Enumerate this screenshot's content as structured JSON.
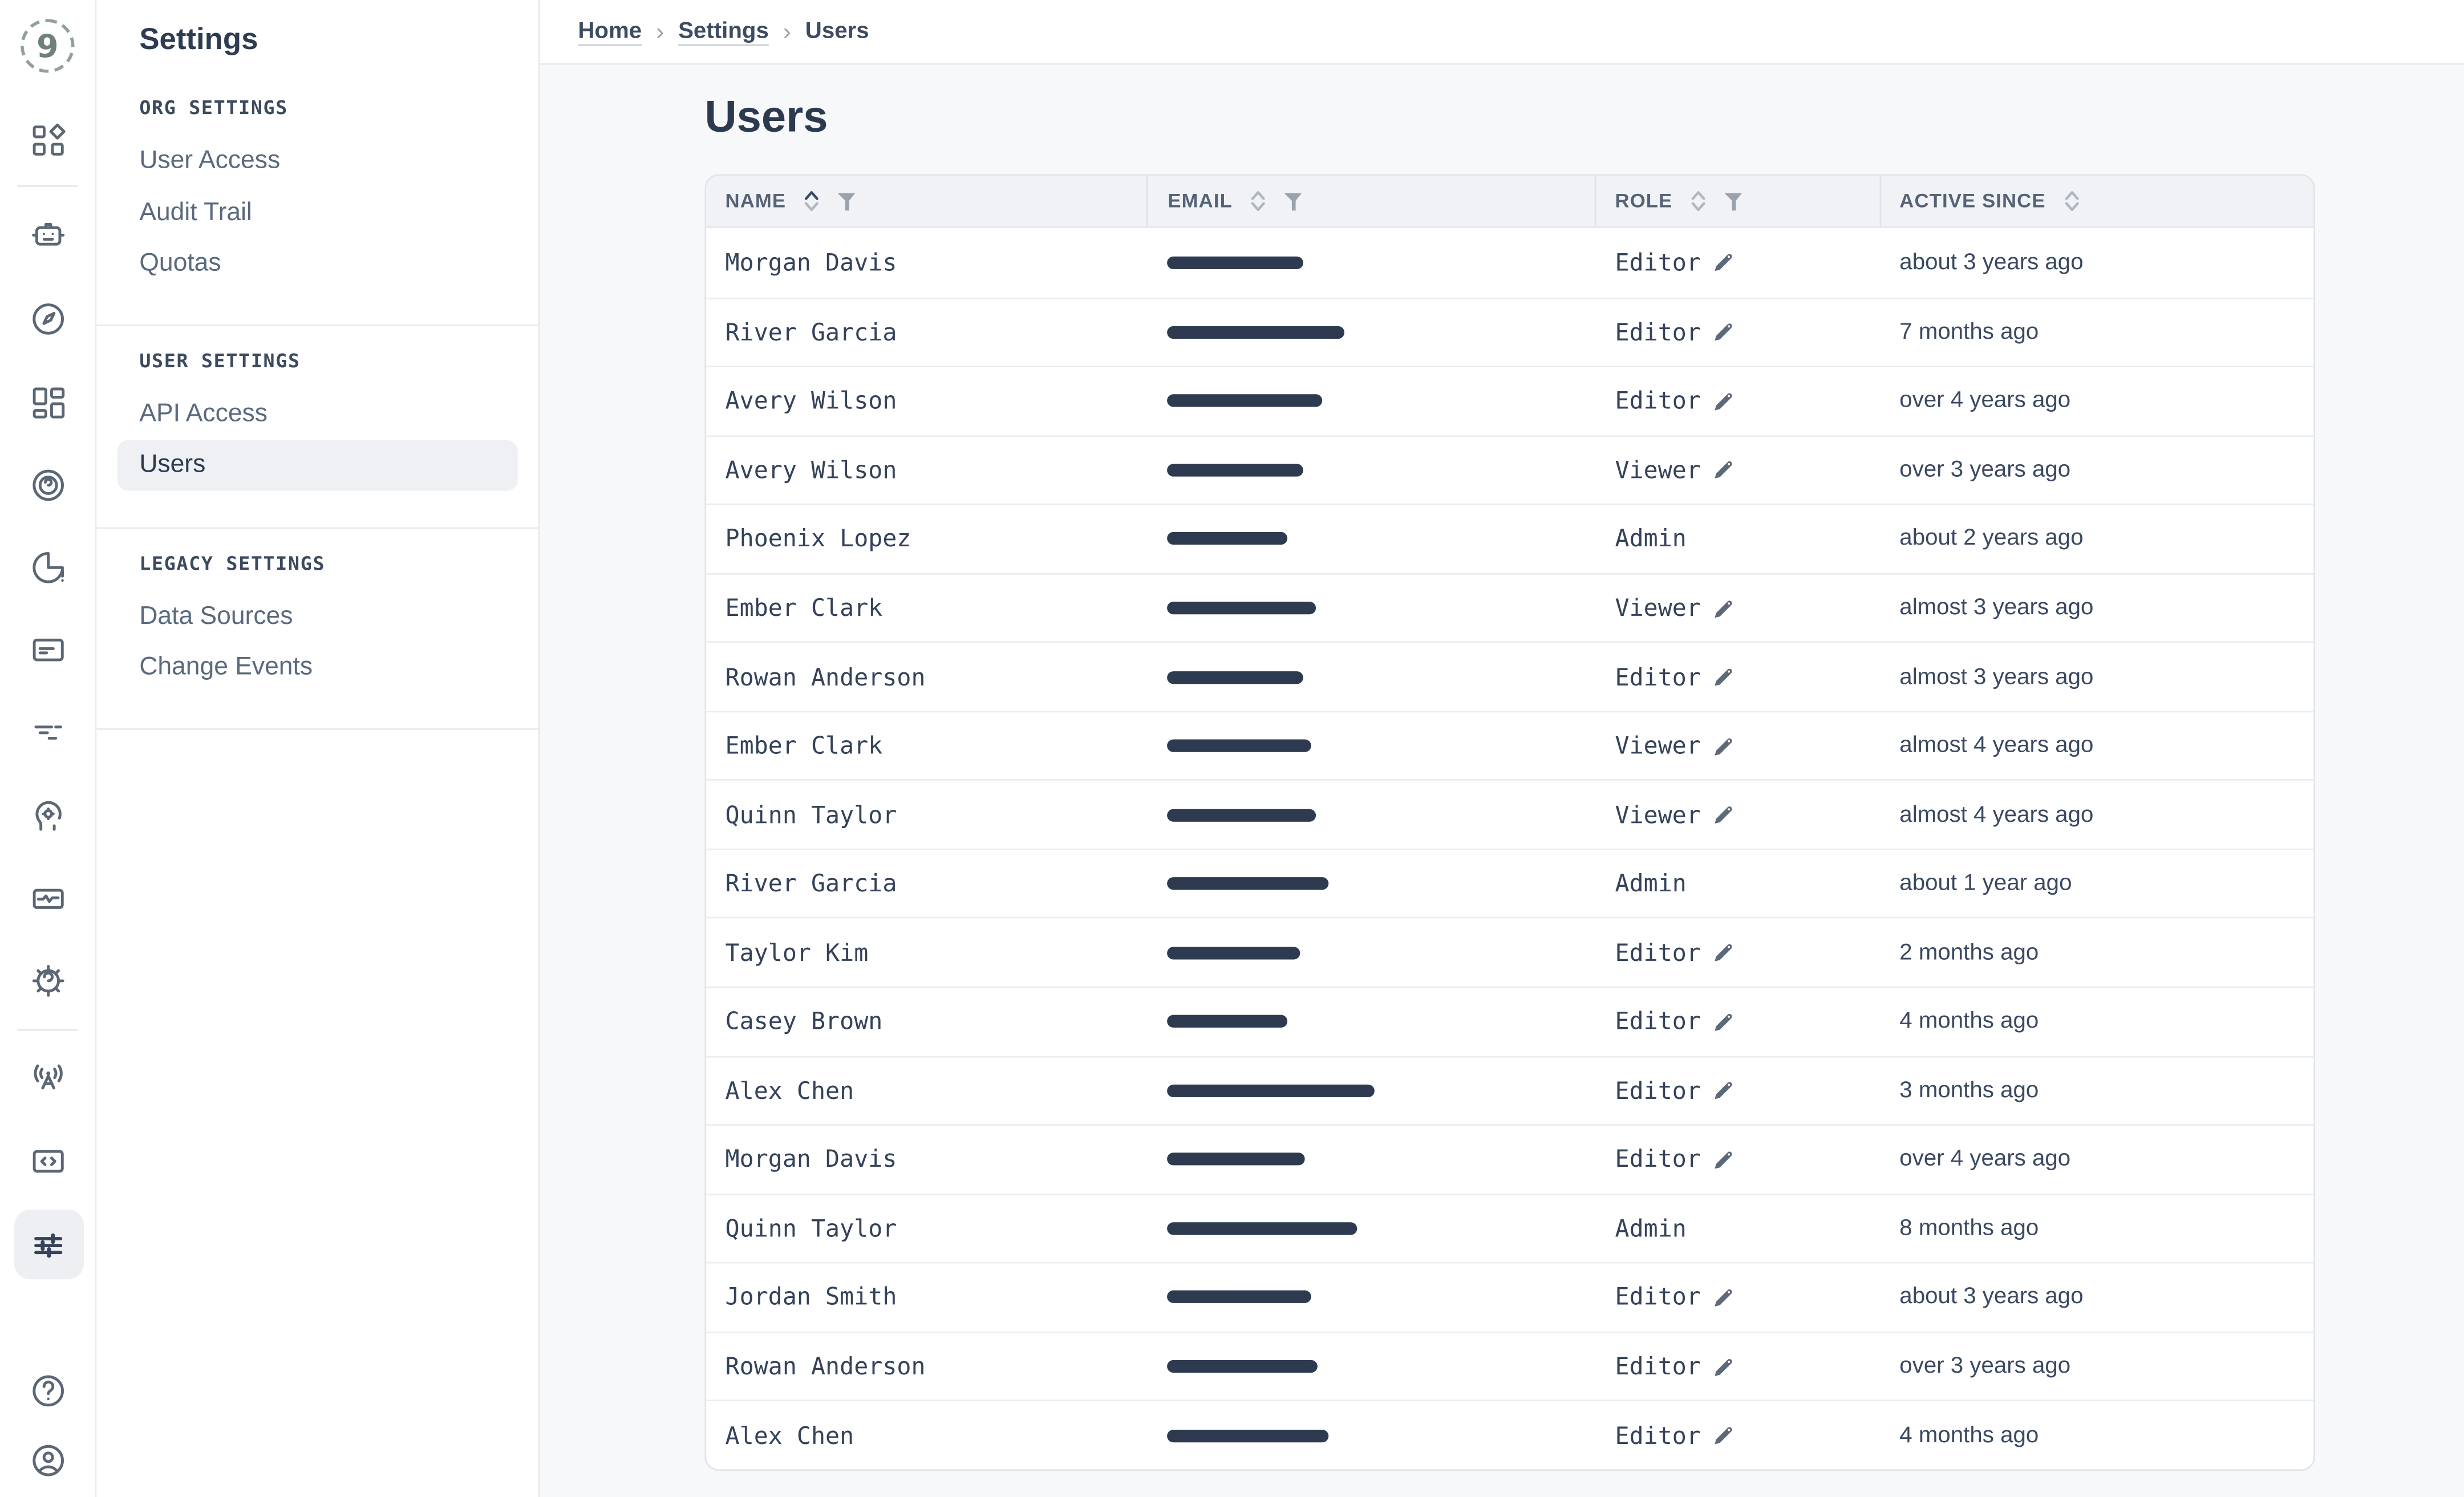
{
  "app": {
    "logo_glyph": "9"
  },
  "rail": {
    "active_item": "settings-sliders",
    "items": [
      "nine-logo",
      "grid-diamond",
      "robot",
      "compass",
      "layout-dashboard",
      "target-rings",
      "pie-alert",
      "note-card",
      "trace-dashes",
      "head-gear",
      "screen-wave",
      "gear-swirl",
      "radio-tower",
      "code-screen",
      "settings-sliders",
      "help",
      "user-profile"
    ]
  },
  "sidebar": {
    "title": "Settings",
    "sections": [
      {
        "header": "ORG SETTINGS",
        "items": [
          {
            "label": "User Access",
            "selected": false
          },
          {
            "label": "Audit Trail",
            "selected": false
          },
          {
            "label": "Quotas",
            "selected": false
          }
        ]
      },
      {
        "header": "USER SETTINGS",
        "items": [
          {
            "label": "API Access",
            "selected": false
          },
          {
            "label": "Users",
            "selected": true
          }
        ]
      },
      {
        "header": "LEGACY SETTINGS",
        "items": [
          {
            "label": "Data Sources",
            "selected": false
          },
          {
            "label": "Change Events",
            "selected": false
          }
        ]
      }
    ]
  },
  "breadcrumb": {
    "separator": "›",
    "items": [
      {
        "label": "Home",
        "current": false
      },
      {
        "label": "Settings",
        "current": false
      },
      {
        "label": "Users",
        "current": true
      }
    ]
  },
  "page": {
    "title": "Users"
  },
  "table": {
    "columns": [
      {
        "label": "NAME",
        "sorted": "asc",
        "filter": true
      },
      {
        "label": "EMAIL",
        "sorted": null,
        "filter": true
      },
      {
        "label": "ROLE",
        "sorted": null,
        "filter": true
      },
      {
        "label": "ACTIVE SINCE",
        "sorted": null,
        "filter": false
      }
    ],
    "rows": [
      {
        "name": "Morgan Davis",
        "email_bar_width": 86,
        "role": "Editor",
        "editable": true,
        "active_since": "about 3 years ago"
      },
      {
        "name": "River Garcia",
        "email_bar_width": 112,
        "role": "Editor",
        "editable": true,
        "active_since": "7 months ago"
      },
      {
        "name": "Avery Wilson",
        "email_bar_width": 98,
        "role": "Editor",
        "editable": true,
        "active_since": "over 4 years ago"
      },
      {
        "name": "Avery Wilson",
        "email_bar_width": 86,
        "role": "Viewer",
        "editable": true,
        "active_since": "over 3 years ago"
      },
      {
        "name": "Phoenix Lopez",
        "email_bar_width": 76,
        "role": "Admin",
        "editable": false,
        "active_since": "about 2 years ago"
      },
      {
        "name": "Ember Clark",
        "email_bar_width": 94,
        "role": "Viewer",
        "editable": true,
        "active_since": "almost 3 years ago"
      },
      {
        "name": "Rowan Anderson",
        "email_bar_width": 86,
        "role": "Editor",
        "editable": true,
        "active_since": "almost 3 years ago"
      },
      {
        "name": "Ember Clark",
        "email_bar_width": 91,
        "role": "Viewer",
        "editable": true,
        "active_since": "almost 4 years ago"
      },
      {
        "name": "Quinn Taylor",
        "email_bar_width": 94,
        "role": "Viewer",
        "editable": true,
        "active_since": "almost 4 years ago"
      },
      {
        "name": "River Garcia",
        "email_bar_width": 102,
        "role": "Admin",
        "editable": false,
        "active_since": "about 1 year ago"
      },
      {
        "name": "Taylor Kim",
        "email_bar_width": 84,
        "role": "Editor",
        "editable": true,
        "active_since": "2 months ago"
      },
      {
        "name": "Casey Brown",
        "email_bar_width": 76,
        "role": "Editor",
        "editable": true,
        "active_since": "4 months ago"
      },
      {
        "name": "Alex Chen",
        "email_bar_width": 131,
        "role": "Editor",
        "editable": true,
        "active_since": "3 months ago"
      },
      {
        "name": "Morgan Davis",
        "email_bar_width": 87,
        "role": "Editor",
        "editable": true,
        "active_since": "over 4 years ago"
      },
      {
        "name": "Quinn Taylor",
        "email_bar_width": 120,
        "role": "Admin",
        "editable": false,
        "active_since": "8 months ago"
      },
      {
        "name": "Jordan Smith",
        "email_bar_width": 91,
        "role": "Editor",
        "editable": true,
        "active_since": "about 3 years ago"
      },
      {
        "name": "Rowan Anderson",
        "email_bar_width": 95,
        "role": "Editor",
        "editable": true,
        "active_since": "over 3 years ago"
      },
      {
        "name": "Alex Chen",
        "email_bar_width": 102,
        "role": "Editor",
        "editable": true,
        "active_since": "4 months ago"
      }
    ]
  },
  "colors": {
    "content_bg": "#f7f8fa",
    "header_bg": "#f0f2f5",
    "border": "#e1e4e9",
    "text_dark": "#34425a",
    "text_muted": "#5a6a7e",
    "redaction_bar": "#2e3a50",
    "selected_bg": "#eef0f3",
    "icon": "#5b6775",
    "logo": "#6f817d"
  }
}
